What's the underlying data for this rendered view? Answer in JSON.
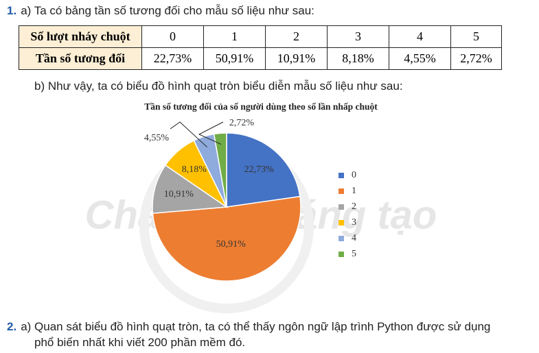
{
  "item1": {
    "number": "1.",
    "text": "a) Ta có bảng tần số tương đối cho mẫu số liệu như sau:"
  },
  "table": {
    "rows": [
      [
        "Số lượt nháy chuột",
        "0",
        "1",
        "2",
        "3",
        "4",
        "5"
      ],
      [
        "Tần số tương đối",
        "22,73%",
        "50,91%",
        "10,91%",
        "8,18%",
        "4,55%",
        "2,72%"
      ]
    ]
  },
  "item1b": "b) Như vậy, ta có biểu đồ hình quạt tròn biểu diễn mẫu số liệu như sau:",
  "chart_data": {
    "type": "pie",
    "title": "Tần số tương đối của số người dùng theo số lần nhấp chuột",
    "categories": [
      "0",
      "1",
      "2",
      "3",
      "4",
      "5"
    ],
    "values": [
      22.73,
      50.91,
      10.91,
      8.18,
      4.55,
      2.72
    ],
    "value_labels": [
      "22,73%",
      "50,91%",
      "10,91%",
      "8,18%",
      "4,55%",
      "2,72%"
    ],
    "colors": [
      "#4472c4",
      "#ed7d31",
      "#a5a5a5",
      "#ffc000",
      "#8faadc",
      "#70ad47"
    ],
    "legend": "right"
  },
  "watermark": "Chân trời sáng tạo",
  "item2": {
    "number": "2.",
    "lines": [
      "a) Quan sát biểu đồ hình quạt tròn, ta có thể thấy ngôn ngữ lập trình Python được sử dụng",
      "phổ biến nhất khi viết 200 phần mềm đó."
    ]
  }
}
